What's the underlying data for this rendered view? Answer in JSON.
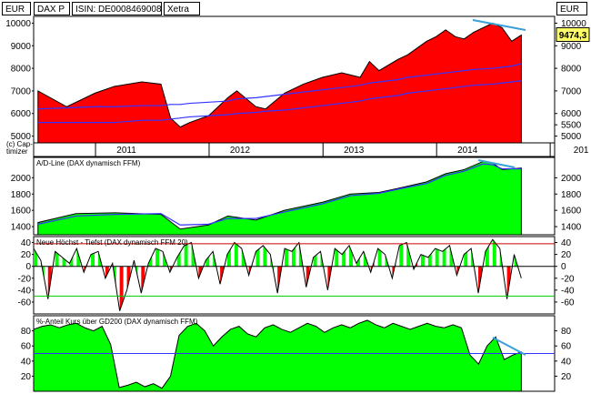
{
  "header": {
    "currency_left": "EUR",
    "instrument": "DAX P",
    "isin": "ISIN: DE0008469008",
    "exchange": "Xetra",
    "currency_right": "EUR"
  },
  "last_price": "9474,3",
  "copyright": [
    "(c) Cap-",
    "timizer"
  ],
  "x_axis": {
    "labels": [
      "2011",
      "2012",
      "2013",
      "2014",
      "201"
    ]
  },
  "colors": {
    "price_fill": "#ff0000",
    "indicator_fill": "#00ff00",
    "moving_avg": "#3333ff",
    "trend_marker": "#3aa0d8",
    "upper_line": "#cc0000",
    "lower_line": "#00cc00",
    "price_box": "#ffff66"
  },
  "chart_data": [
    {
      "type": "area",
      "title": "",
      "ylim": [
        4700,
        10300
      ],
      "y_ticks_left": [
        "10000",
        "9000",
        "8000",
        "7000",
        "6000",
        "5000"
      ],
      "y_ticks_right": [
        "10000",
        "9000",
        "8000",
        "7000",
        "6000",
        "5500",
        "5000"
      ],
      "x": [
        "2010-06",
        "2010-09",
        "2010-12",
        "2011-02",
        "2011-05",
        "2011-07",
        "2011-08",
        "2011-09",
        "2011-10",
        "2011-12",
        "2012-02",
        "2012-03",
        "2012-05",
        "2012-06",
        "2012-08",
        "2012-10",
        "2012-12",
        "2013-02",
        "2013-04",
        "2013-05",
        "2013-06",
        "2013-08",
        "2013-09",
        "2013-11",
        "2013-12",
        "2014-01",
        "2014-02",
        "2014-03",
        "2014-04",
        "2014-06",
        "2014-07",
        "2014-08",
        "2014-09"
      ],
      "series": [
        {
          "values": [
            7000,
            6300,
            6900,
            7200,
            7400,
            7300,
            5800,
            5400,
            5600,
            5900,
            6700,
            7000,
            6300,
            6200,
            6900,
            7300,
            7600,
            7800,
            7600,
            8300,
            7900,
            8400,
            8600,
            9200,
            9400,
            9700,
            9400,
            9300,
            9600,
            10000,
            9800,
            9200,
            9474
          ]
        },
        {
          "values": [
            5600,
            5600,
            5600,
            5600,
            5700,
            5700,
            5750,
            5800,
            5850,
            5900,
            5950,
            6000,
            6050,
            6100,
            6150,
            6250,
            6350,
            6450,
            6550,
            6650,
            6700,
            6800,
            6900,
            7000,
            7050,
            7100,
            7150,
            7200,
            7250,
            7300,
            7350,
            7400,
            7450
          ]
        },
        {
          "values": [
            6200,
            6250,
            6300,
            6300,
            6350,
            6350,
            6400,
            6400,
            6450,
            6500,
            6550,
            6650,
            6700,
            6750,
            6850,
            6950,
            7050,
            7150,
            7250,
            7350,
            7400,
            7500,
            7600,
            7700,
            7750,
            7800,
            7850,
            7900,
            7950,
            8000,
            8050,
            8100,
            8200
          ]
        }
      ]
    },
    {
      "type": "area",
      "title": "A/D-Line (DAX dynamisch FFM)",
      "ylim": [
        1300,
        2250
      ],
      "y_ticks_left": [
        "2000",
        "1800",
        "1600",
        "1400"
      ],
      "y_ticks_right": [
        "2000",
        "1800",
        "1600",
        "1400"
      ],
      "x": [
        "2010-06",
        "2010-10",
        "2011-02",
        "2011-07",
        "2011-09",
        "2011-12",
        "2012-02",
        "2012-05",
        "2012-08",
        "2012-12",
        "2013-03",
        "2013-06",
        "2013-08",
        "2013-11",
        "2014-01",
        "2014-03",
        "2014-05",
        "2014-06",
        "2014-07",
        "2014-09"
      ],
      "series": [
        {
          "values": [
            1450,
            1560,
            1570,
            1550,
            1370,
            1420,
            1530,
            1480,
            1600,
            1700,
            1800,
            1820,
            1870,
            1950,
            2050,
            2100,
            2200,
            2180,
            2100,
            2120
          ]
        },
        {
          "values": [
            1430,
            1530,
            1550,
            1560,
            1420,
            1430,
            1500,
            1500,
            1580,
            1680,
            1780,
            1810,
            1860,
            1930,
            2030,
            2080,
            2170,
            2160,
            2110,
            2110
          ]
        }
      ]
    },
    {
      "type": "area",
      "title": "Neue Höchst - Tiefst (DAX dynamisch FFM 20)",
      "ylim": [
        -80,
        50
      ],
      "y_ticks_left": [
        "40",
        "20",
        "0",
        "-20",
        "-40",
        "-60"
      ],
      "y_ticks_right": [
        "40",
        "20",
        "0",
        "-20",
        "-40",
        "-60"
      ],
      "reference_lines": [
        38,
        0,
        -50
      ],
      "series": [
        {
          "values": [
            30,
            10,
            -55,
            25,
            15,
            5,
            30,
            -10,
            20,
            25,
            -20,
            5,
            -75,
            -40,
            10,
            -45,
            5,
            30,
            25,
            -10,
            15,
            35,
            40,
            -20,
            10,
            25,
            -30,
            20,
            40,
            30,
            -15,
            25,
            35,
            20,
            -45,
            30,
            25,
            40,
            -35,
            15,
            25,
            -40,
            30,
            20,
            35,
            5,
            25,
            -10,
            30,
            20,
            -20,
            35,
            40,
            -5,
            20,
            15,
            30,
            25,
            35,
            -15,
            20,
            30,
            -45,
            25,
            45,
            30,
            -55,
            20,
            -20
          ]
        }
      ]
    },
    {
      "type": "area",
      "title": "%-Anteil Kurs über GD200 (DAX dynamisch FFM)",
      "ylim": [
        0,
        100
      ],
      "y_ticks_left": [
        "80",
        "60",
        "40",
        "20"
      ],
      "y_ticks_right": [
        "80",
        "60",
        "40",
        "20"
      ],
      "reference_lines": [
        50
      ],
      "series": [
        {
          "values": [
            82,
            86,
            88,
            84,
            88,
            90,
            84,
            80,
            86,
            62,
            5,
            8,
            12,
            6,
            10,
            4,
            20,
            74,
            86,
            90,
            80,
            60,
            72,
            82,
            86,
            76,
            72,
            84,
            88,
            82,
            78,
            84,
            90,
            86,
            78,
            84,
            88,
            84,
            90,
            94,
            88,
            84,
            90,
            86,
            82,
            86,
            90,
            86,
            84,
            88,
            84,
            48,
            36,
            60,
            72,
            42,
            48,
            52
          ]
        }
      ]
    }
  ]
}
